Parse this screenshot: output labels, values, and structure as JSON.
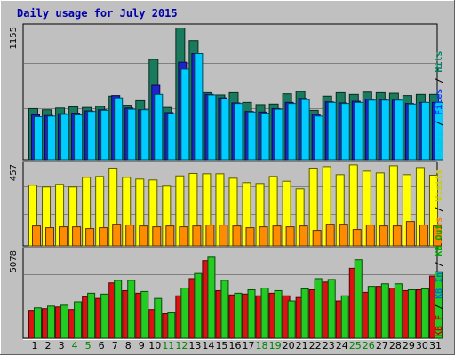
{
  "chart_data": {
    "type": "bar",
    "title": "Daily usage for July 2015",
    "categories": [
      "1",
      "2",
      "3",
      "4",
      "5",
      "6",
      "7",
      "8",
      "9",
      "10",
      "11",
      "12",
      "13",
      "14",
      "15",
      "16",
      "17",
      "18",
      "19",
      "20",
      "21",
      "22",
      "23",
      "24",
      "25",
      "26",
      "27",
      "28",
      "29",
      "30",
      "31"
    ],
    "weekend_days": [
      "4",
      "5",
      "11",
      "12",
      "18",
      "19",
      "25",
      "26"
    ],
    "panels": [
      {
        "name": "hits-files-pages-visits",
        "y_max_label": "1155",
        "ylim": [
          0,
          1155
        ],
        "right_labels": [
          {
            "text": "Pages",
            "color": "#00c8e6"
          },
          {
            "text": " / ",
            "color": "#000000"
          },
          {
            "text": "Files",
            "color": "#0040ff"
          },
          {
            "text": " / ",
            "color": "#000000"
          },
          {
            "text": "Hits",
            "color": "#008060"
          }
        ],
        "series": [
          {
            "key": "hits",
            "color": "#1a7a5e",
            "values": [
              450,
              440,
              455,
              465,
              460,
              470,
              560,
              480,
              520,
              880,
              460,
              1155,
              1045,
              590,
              570,
              590,
              505,
              485,
              490,
              580,
              600,
              435,
              560,
              590,
              575,
              595,
              590,
              585,
              565,
              575,
              575
            ]
          },
          {
            "key": "files",
            "color": "#2222cc",
            "values": [
              395,
              390,
              405,
              410,
              430,
              440,
              565,
              455,
              440,
              655,
              415,
              855,
              930,
              575,
              545,
              500,
              425,
              420,
              450,
              505,
              540,
              400,
              510,
              500,
              515,
              535,
              530,
              525,
              495,
              505,
              505
            ]
          },
          {
            "key": "pages",
            "color": "#00ccff",
            "values": [
              380,
              385,
              400,
              395,
              425,
              435,
              545,
              445,
              440,
              575,
              405,
              795,
              930,
              570,
              535,
              495,
              420,
              410,
              445,
              495,
              530,
              385,
              505,
              495,
              505,
              525,
              525,
              525,
              490,
              505,
              505
            ]
          }
        ]
      },
      {
        "name": "sites-visits",
        "y_max_label": "457",
        "ylim": [
          0,
          457
        ],
        "right_labels": [
          {
            "text": "Sites",
            "color": "#ff8000"
          },
          {
            "text": " / ",
            "color": "#000000"
          },
          {
            "text": "Visits",
            "color": "#cccc00"
          }
        ],
        "series": [
          {
            "key": "visits",
            "color": "#ffff00",
            "values": [
              345,
              335,
              350,
              335,
              390,
              395,
              442,
              390,
              380,
              375,
              340,
              398,
              412,
              410,
              410,
              385,
              360,
              355,
              395,
              368,
              325,
              442,
              450,
              405,
              460,
              425,
              415,
              455,
              405,
              445,
              402
            ]
          },
          {
            "key": "sites",
            "color": "#ff8c00",
            "values": [
              115,
              105,
              110,
              110,
              100,
              105,
              125,
              120,
              115,
              110,
              115,
              110,
              115,
              120,
              120,
              115,
              105,
              110,
              115,
              110,
              115,
              90,
              125,
              125,
              95,
              120,
              115,
              115,
              140,
              120,
              115
            ]
          }
        ]
      },
      {
        "name": "kbytes",
        "y_max_label": "5078",
        "ylim": [
          0,
          5078
        ],
        "right_labels": [
          {
            "text": "KB F",
            "color": "#cc0000"
          },
          {
            "text": " / ",
            "color": "#000000"
          },
          {
            "text": "KB In",
            "color": "#0070e0"
          },
          {
            "text": " / ",
            "color": "#000000"
          },
          {
            "text": "KB Out",
            "color": "#00aa00"
          }
        ],
        "series": [
          {
            "key": "kbf",
            "color": "#dd1111",
            "values": [
              1650,
              1750,
              1850,
              1700,
              2450,
              2350,
              3250,
              2800,
              2650,
              1700,
              1450,
              2500,
              3500,
              4550,
              2800,
              2550,
              2600,
              2500,
              2650,
              2500,
              2400,
              2850,
              3300,
              2200,
              4100,
              2700,
              3050,
              2950,
              2800,
              2850,
              3650
            ]
          },
          {
            "key": "kbout",
            "color": "#22cc22",
            "values": [
              1800,
              1900,
              1950,
              2150,
              2650,
              2600,
              3400,
              3400,
              2750,
              2350,
              1500,
              2950,
              3800,
              4750,
              3400,
              2650,
              2850,
              2950,
              2800,
              2200,
              2900,
              3500,
              3450,
              2500,
              4600,
              3050,
              3200,
              3200,
              2850,
              2900,
              3900
            ]
          }
        ]
      }
    ]
  }
}
